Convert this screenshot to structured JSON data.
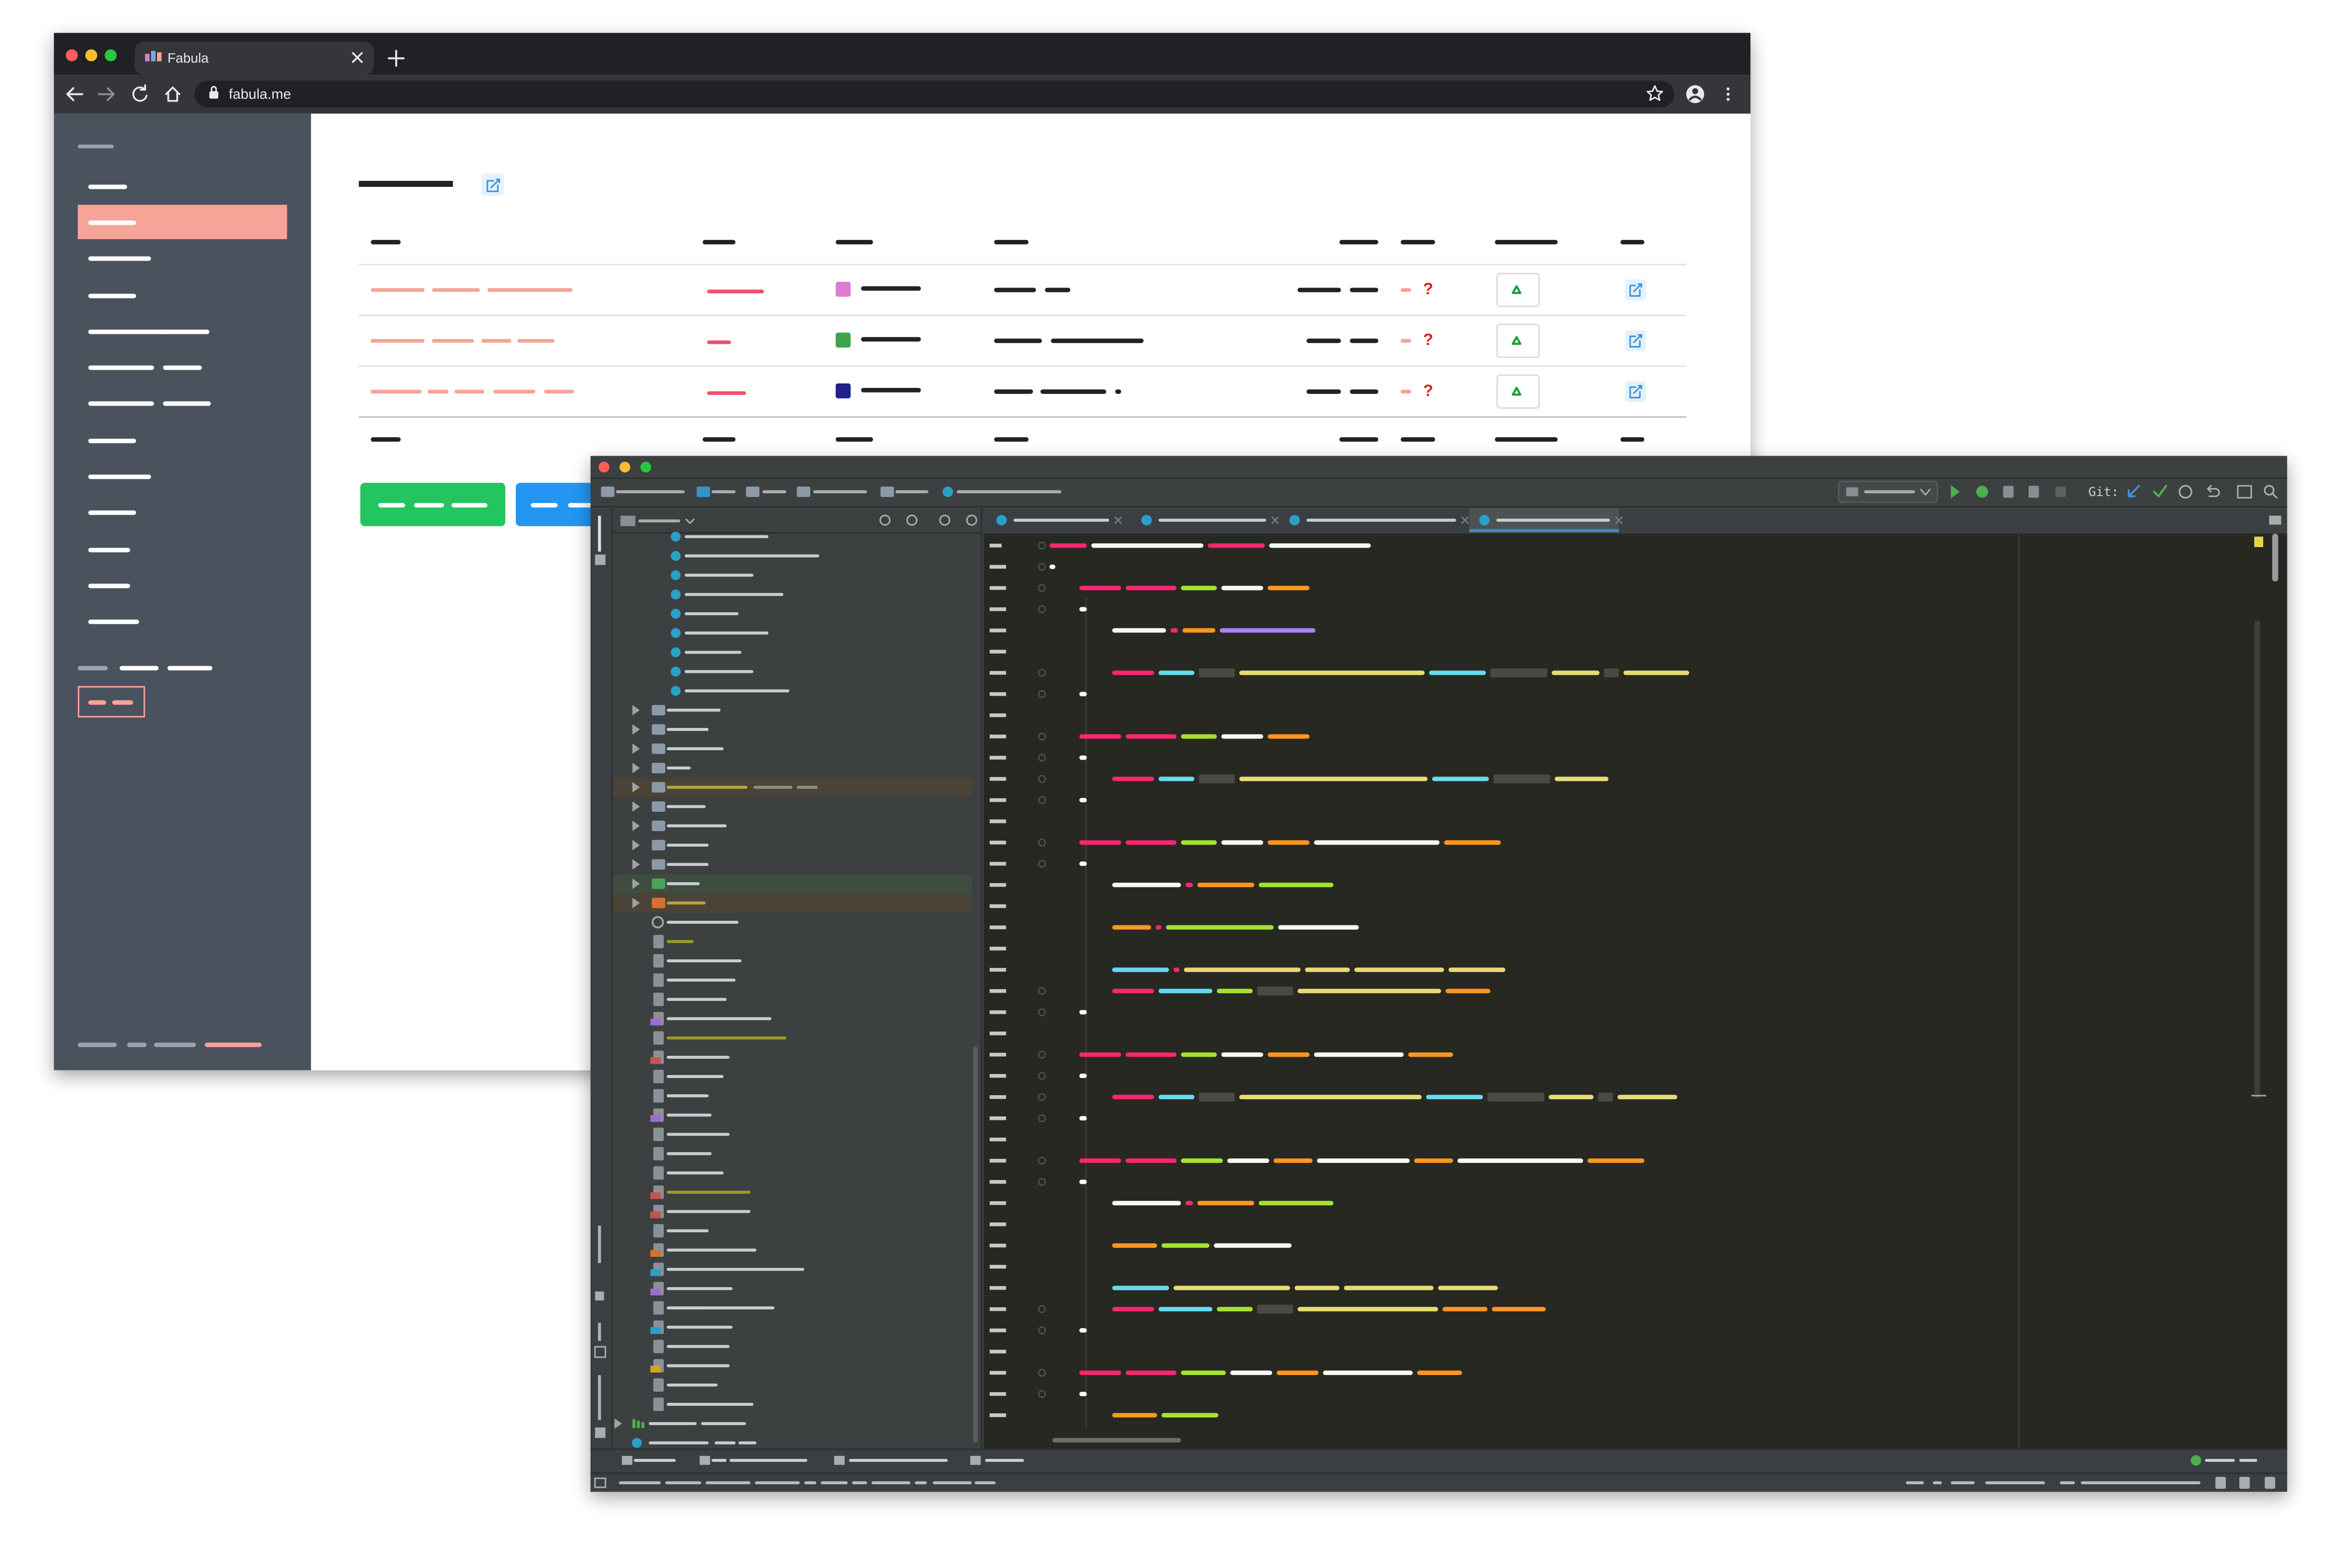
{
  "browser": {
    "tab_title": "Fabula",
    "url": "fabula.me",
    "table": {
      "rows": [
        {
          "status": "?"
        },
        {
          "status": "?"
        },
        {
          "status": "?"
        }
      ]
    }
  },
  "ide": {
    "toolbar": {
      "git_label": "Git:"
    }
  }
}
